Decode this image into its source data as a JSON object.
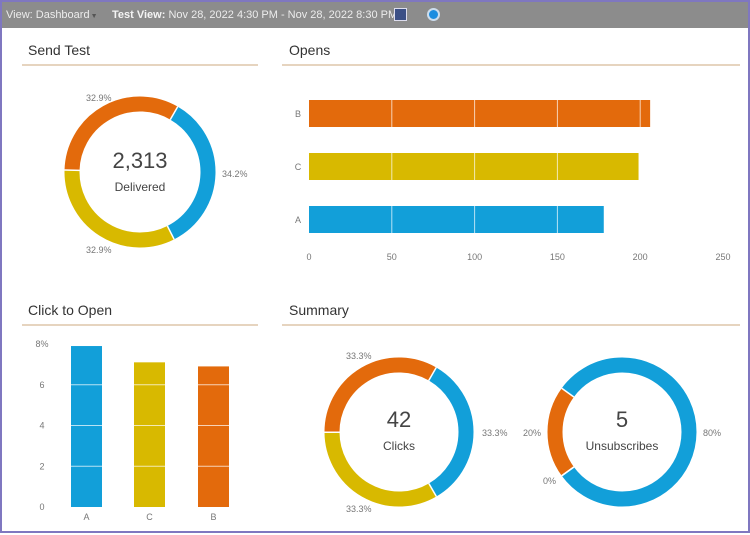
{
  "toolbar": {
    "view_label": "View: Dashboard",
    "test_view_label": "Test View:",
    "test_view_range": "Nov 28, 2022 4:30 PM - Nov 28, 2022 8:30 PM",
    "icons": [
      "export-icon",
      "refresh-icon"
    ]
  },
  "colors": {
    "A": "#129fd9",
    "B": "#e36a0c",
    "C": "#d8b900"
  },
  "send_test": {
    "title": "Send Test",
    "total": "2,313",
    "total_label": "Delivered",
    "segments": [
      {
        "name": "A",
        "pct": 34.2,
        "label": "34.2%"
      },
      {
        "name": "C",
        "pct": 32.9,
        "label": "32.9%"
      },
      {
        "name": "B",
        "pct": 32.9,
        "label": "32.9%"
      }
    ]
  },
  "opens": {
    "title": "Opens"
  },
  "click_to_open": {
    "title": "Click to Open"
  },
  "summary": {
    "title": "Summary",
    "clicks": {
      "total": "42",
      "label": "Clicks",
      "segments": [
        {
          "name": "A",
          "pct": 33.3,
          "label": "33.3%"
        },
        {
          "name": "C",
          "pct": 33.3,
          "label": "33.3%"
        },
        {
          "name": "B",
          "pct": 33.3,
          "label": "33.3%"
        }
      ]
    },
    "unsubscribes": {
      "total": "5",
      "label": "Unsubscribes",
      "segments": [
        {
          "name": "A",
          "pct": 80,
          "label": "80%"
        },
        {
          "name": "C",
          "pct": 0,
          "label": "0%"
        },
        {
          "name": "B",
          "pct": 20,
          "label": "20%"
        }
      ]
    }
  },
  "chart_data": [
    {
      "type": "bar",
      "orientation": "horizontal",
      "title": "Opens",
      "categories": [
        "B",
        "C",
        "A"
      ],
      "values": [
        206,
        199,
        178
      ],
      "xlim": [
        0,
        250
      ],
      "xticks": [
        "0",
        "50",
        "100",
        "150",
        "200",
        "250"
      ]
    },
    {
      "type": "bar",
      "title": "Click to Open",
      "categories": [
        "A",
        "C",
        "B"
      ],
      "values": [
        7.9,
        7.1,
        6.9
      ],
      "ylim": [
        0,
        8
      ],
      "yticks": [
        "0",
        "2",
        "4",
        "6",
        "8%"
      ]
    }
  ]
}
